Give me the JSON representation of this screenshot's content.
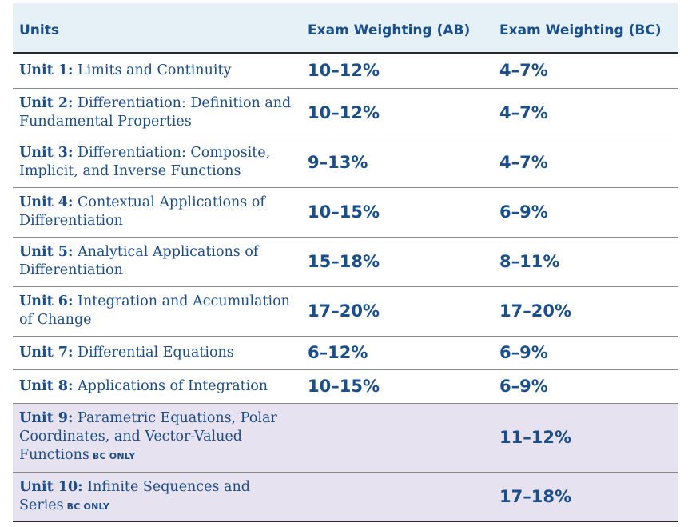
{
  "header": {
    "units": "Units",
    "ab": "Exam Weighting (AB)",
    "bc": "Exam Weighting (BC)"
  },
  "bc_only_label": "BC ONLY",
  "rows": [
    {
      "unit": "Unit 1:",
      "title": "Limits and Continuity",
      "ab": "10–12%",
      "bc": "4–7%",
      "bc_only": false
    },
    {
      "unit": "Unit 2:",
      "title": "Differentiation: Definition and Fundamental Properties",
      "ab": "10–12%",
      "bc": "4–7%",
      "bc_only": false
    },
    {
      "unit": "Unit 3:",
      "title": "Differentiation: Composite, Implicit, and Inverse Functions",
      "ab": "9–13%",
      "bc": "4–7%",
      "bc_only": false
    },
    {
      "unit": "Unit 4:",
      "title": "Contextual Applications of Differentiation",
      "ab": "10–15%",
      "bc": "6–9%",
      "bc_only": false
    },
    {
      "unit": "Unit 5:",
      "title": "Analytical Applications of Differentiation",
      "ab": "15–18%",
      "bc": "8–11%",
      "bc_only": false
    },
    {
      "unit": "Unit 6:",
      "title": "Integration and Accumulation of Change",
      "ab": "17–20%",
      "bc": "17–20%",
      "bc_only": false
    },
    {
      "unit": "Unit 7:",
      "title": "Differential Equations",
      "ab": "6–12%",
      "bc": "6–9%",
      "bc_only": false
    },
    {
      "unit": "Unit 8:",
      "title": "Applications of Integration",
      "ab": "10–15%",
      "bc": "6–9%",
      "bc_only": false
    },
    {
      "unit": "Unit 9:",
      "title": "Parametric Equations, Polar Coordinates, and Vector-Valued Functions",
      "ab": "",
      "bc": "11–12%",
      "bc_only": true
    },
    {
      "unit": "Unit 10:",
      "title": "Infinite Sequences and Series",
      "ab": "",
      "bc": "17–18%",
      "bc_only": true
    }
  ]
}
